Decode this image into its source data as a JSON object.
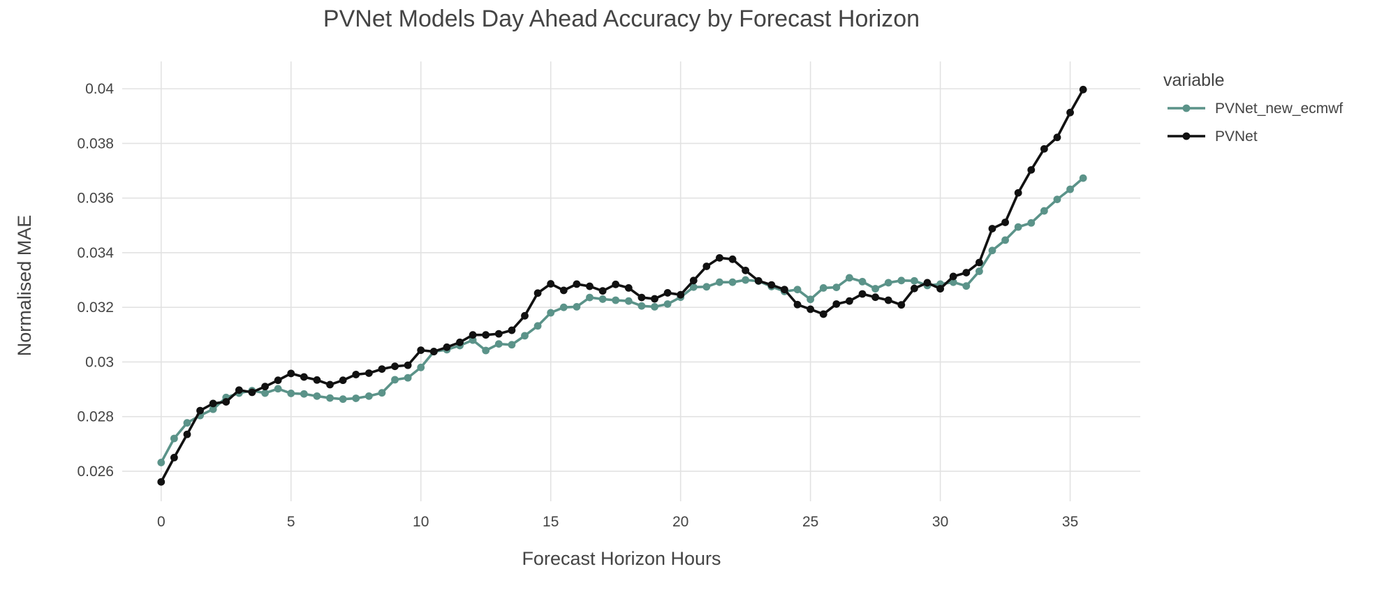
{
  "chart_data": {
    "type": "line",
    "title": "PVNet Models Day Ahead Accuracy by Forecast Horizon",
    "xlabel": "Forecast Horizon Hours",
    "ylabel": "Normalised MAE",
    "xlim": [
      -1.5,
      37.7
    ],
    "ylim": [
      0.0249,
      0.041
    ],
    "xticks": [
      0,
      5,
      10,
      15,
      20,
      25,
      30,
      35
    ],
    "xtick_labels": [
      "0",
      "5",
      "10",
      "15",
      "20",
      "25",
      "30",
      "35"
    ],
    "yticks": [
      0.026,
      0.028,
      0.03,
      0.032,
      0.034,
      0.036,
      0.038,
      0.04
    ],
    "ytick_labels": [
      "0.026",
      "0.028",
      "0.03",
      "0.032",
      "0.034",
      "0.036",
      "0.038",
      "0.04"
    ],
    "grid": true,
    "legend": {
      "title": "variable",
      "placement": "top-right"
    },
    "x": [
      0,
      0.5,
      1,
      1.5,
      2,
      2.5,
      3,
      3.5,
      4,
      4.5,
      5,
      5.5,
      6,
      6.5,
      7,
      7.5,
      8,
      8.5,
      9,
      9.5,
      10,
      10.5,
      11,
      11.5,
      12,
      12.5,
      13,
      13.5,
      14,
      14.5,
      15,
      15.5,
      16,
      16.5,
      17,
      17.5,
      18,
      18.5,
      19,
      19.5,
      20,
      20.5,
      21,
      21.5,
      22,
      22.5,
      23,
      23.5,
      24,
      24.5,
      25,
      25.5,
      26,
      26.5,
      27,
      27.5,
      28,
      28.5,
      29,
      29.5,
      30,
      30.5,
      31,
      31.5,
      32,
      32.5,
      33,
      33.5,
      34,
      34.5,
      35,
      35.5
    ],
    "series": [
      {
        "name": "PVNet_new_ecmwf",
        "color": "#5b9389",
        "values": [
          0.02632,
          0.0272,
          0.02777,
          0.02804,
          0.02827,
          0.0287,
          0.02886,
          0.02895,
          0.02886,
          0.02902,
          0.02885,
          0.02883,
          0.02875,
          0.02868,
          0.02864,
          0.02867,
          0.02875,
          0.02887,
          0.02935,
          0.02942,
          0.0298,
          0.03038,
          0.03045,
          0.0306,
          0.0308,
          0.03042,
          0.03066,
          0.03063,
          0.03096,
          0.03132,
          0.0318,
          0.032,
          0.03202,
          0.03236,
          0.0323,
          0.03226,
          0.03223,
          0.03205,
          0.03202,
          0.03212,
          0.03237,
          0.03274,
          0.03275,
          0.03292,
          0.03292,
          0.033,
          0.03296,
          0.03276,
          0.03258,
          0.03265,
          0.03229,
          0.03271,
          0.03273,
          0.03308,
          0.03294,
          0.03268,
          0.0329,
          0.03298,
          0.03297,
          0.0328,
          0.03285,
          0.03292,
          0.03278,
          0.03332,
          0.03408,
          0.03446,
          0.03494,
          0.03509,
          0.03553,
          0.03595,
          0.03632,
          0.03673
        ]
      },
      {
        "name": "PVNet",
        "color": "#111111",
        "values": [
          0.02561,
          0.0265,
          0.02735,
          0.02822,
          0.02848,
          0.02854,
          0.02897,
          0.02889,
          0.0291,
          0.02933,
          0.02958,
          0.02945,
          0.02934,
          0.02917,
          0.02933,
          0.02954,
          0.02959,
          0.02974,
          0.02984,
          0.02988,
          0.03043,
          0.03038,
          0.03054,
          0.03072,
          0.03099,
          0.03099,
          0.03103,
          0.03116,
          0.03169,
          0.03252,
          0.03286,
          0.03262,
          0.03285,
          0.03277,
          0.0326,
          0.03284,
          0.03271,
          0.03236,
          0.03231,
          0.03253,
          0.03246,
          0.03298,
          0.0335,
          0.03381,
          0.03376,
          0.03335,
          0.03297,
          0.03282,
          0.03265,
          0.0321,
          0.03193,
          0.03175,
          0.03212,
          0.03223,
          0.03249,
          0.03237,
          0.03226,
          0.03209,
          0.03269,
          0.0329,
          0.03268,
          0.03313,
          0.03327,
          0.03364,
          0.03488,
          0.03511,
          0.03619,
          0.03703,
          0.0378,
          0.03822,
          0.03913,
          0.03997
        ]
      }
    ]
  }
}
